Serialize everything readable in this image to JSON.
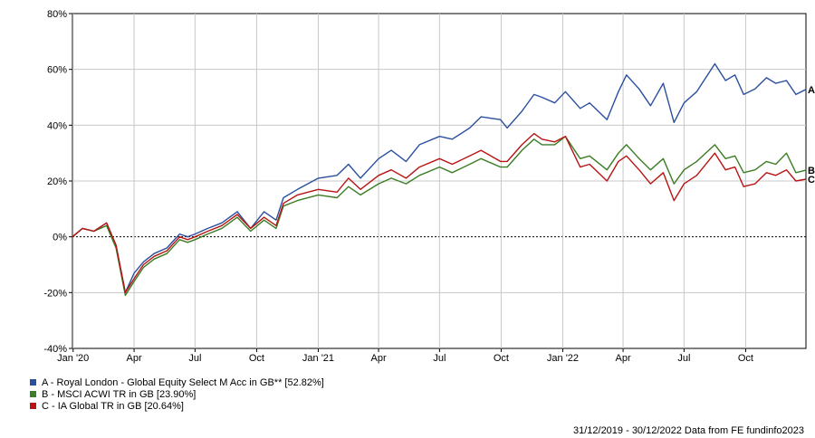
{
  "chart_data": {
    "type": "line",
    "ylim": [
      -40,
      80
    ],
    "y_tick_labels": [
      "80%",
      "60%",
      "40%",
      "20%",
      "0%",
      "-20%",
      "-40%"
    ],
    "y_tick_values": [
      80,
      60,
      40,
      20,
      0,
      -20,
      -40
    ],
    "x_tick_labels": [
      "Jan '20",
      "Apr",
      "Jul",
      "Oct",
      "Jan '21",
      "Apr",
      "Jul",
      "Oct",
      "Jan '22",
      "Apr",
      "Jul",
      "Oct"
    ],
    "x_tick_dates": [
      "2020-01-01",
      "2020-04-01",
      "2020-07-01",
      "2020-10-01",
      "2021-01-01",
      "2021-04-01",
      "2021-07-01",
      "2021-10-01",
      "2022-01-01",
      "2022-04-01",
      "2022-07-01",
      "2022-10-01"
    ],
    "x_range": [
      "2019-12-31",
      "2022-12-30"
    ],
    "grid": true,
    "zero_line": "dashed",
    "series": [
      {
        "name": "A - Royal London - Global Equity Select M Acc in GB** [52.82%]",
        "end_label": "A",
        "color": "#2a4f9f",
        "points": [
          [
            "2019-12-31",
            0
          ],
          [
            "2020-01-15",
            3
          ],
          [
            "2020-02-01",
            2
          ],
          [
            "2020-02-20",
            5
          ],
          [
            "2020-03-05",
            -3
          ],
          [
            "2020-03-19",
            -20
          ],
          [
            "2020-04-01",
            -13
          ],
          [
            "2020-04-15",
            -9
          ],
          [
            "2020-05-01",
            -6
          ],
          [
            "2020-05-20",
            -4
          ],
          [
            "2020-06-08",
            1
          ],
          [
            "2020-06-20",
            0
          ],
          [
            "2020-07-01",
            1
          ],
          [
            "2020-07-20",
            3
          ],
          [
            "2020-08-10",
            5
          ],
          [
            "2020-09-02",
            9
          ],
          [
            "2020-09-22",
            3
          ],
          [
            "2020-10-12",
            9
          ],
          [
            "2020-10-30",
            6
          ],
          [
            "2020-11-10",
            14
          ],
          [
            "2020-12-01",
            17
          ],
          [
            "2021-01-01",
            21
          ],
          [
            "2021-01-29",
            22
          ],
          [
            "2021-02-15",
            26
          ],
          [
            "2021-03-05",
            21
          ],
          [
            "2021-04-01",
            28
          ],
          [
            "2021-04-20",
            31
          ],
          [
            "2021-05-12",
            27
          ],
          [
            "2021-06-01",
            33
          ],
          [
            "2021-07-01",
            36
          ],
          [
            "2021-07-20",
            35
          ],
          [
            "2021-08-15",
            39
          ],
          [
            "2021-09-01",
            43
          ],
          [
            "2021-09-30",
            42
          ],
          [
            "2021-10-10",
            39
          ],
          [
            "2021-11-01",
            45
          ],
          [
            "2021-11-19",
            51
          ],
          [
            "2021-12-01",
            50
          ],
          [
            "2021-12-20",
            48
          ],
          [
            "2022-01-05",
            52
          ],
          [
            "2022-01-27",
            46
          ],
          [
            "2022-02-10",
            48
          ],
          [
            "2022-03-08",
            42
          ],
          [
            "2022-03-25",
            52
          ],
          [
            "2022-04-06",
            58
          ],
          [
            "2022-04-25",
            53
          ],
          [
            "2022-05-12",
            47
          ],
          [
            "2022-05-31",
            55
          ],
          [
            "2022-06-16",
            41
          ],
          [
            "2022-07-01",
            48
          ],
          [
            "2022-07-20",
            52
          ],
          [
            "2022-08-16",
            62
          ],
          [
            "2022-09-01",
            56
          ],
          [
            "2022-09-15",
            58
          ],
          [
            "2022-09-28",
            51
          ],
          [
            "2022-10-15",
            53
          ],
          [
            "2022-11-01",
            57
          ],
          [
            "2022-11-15",
            55
          ],
          [
            "2022-12-01",
            56
          ],
          [
            "2022-12-15",
            51
          ],
          [
            "2022-12-30",
            52.82
          ]
        ]
      },
      {
        "name": "B - MSCI ACWI TR in GB [23.90%]",
        "end_label": "B",
        "color": "#3b7d23",
        "points": [
          [
            "2019-12-31",
            0
          ],
          [
            "2020-01-15",
            3
          ],
          [
            "2020-02-01",
            2
          ],
          [
            "2020-02-20",
            4
          ],
          [
            "2020-03-05",
            -4
          ],
          [
            "2020-03-19",
            -21
          ],
          [
            "2020-04-01",
            -16
          ],
          [
            "2020-04-15",
            -11
          ],
          [
            "2020-05-01",
            -8
          ],
          [
            "2020-05-20",
            -6
          ],
          [
            "2020-06-08",
            -1
          ],
          [
            "2020-06-20",
            -2
          ],
          [
            "2020-07-01",
            -1
          ],
          [
            "2020-07-20",
            1
          ],
          [
            "2020-08-10",
            3
          ],
          [
            "2020-09-02",
            7
          ],
          [
            "2020-09-22",
            2
          ],
          [
            "2020-10-12",
            6
          ],
          [
            "2020-10-30",
            3
          ],
          [
            "2020-11-10",
            11
          ],
          [
            "2020-12-01",
            13
          ],
          [
            "2021-01-01",
            15
          ],
          [
            "2021-01-29",
            14
          ],
          [
            "2021-02-15",
            18
          ],
          [
            "2021-03-05",
            15
          ],
          [
            "2021-04-01",
            19
          ],
          [
            "2021-04-20",
            21
          ],
          [
            "2021-05-12",
            19
          ],
          [
            "2021-06-01",
            22
          ],
          [
            "2021-07-01",
            25
          ],
          [
            "2021-07-20",
            23
          ],
          [
            "2021-08-15",
            26
          ],
          [
            "2021-09-01",
            28
          ],
          [
            "2021-09-30",
            25
          ],
          [
            "2021-10-10",
            25
          ],
          [
            "2021-11-01",
            31
          ],
          [
            "2021-11-19",
            35
          ],
          [
            "2021-12-01",
            33
          ],
          [
            "2021-12-20",
            33
          ],
          [
            "2022-01-05",
            36
          ],
          [
            "2022-01-27",
            28
          ],
          [
            "2022-02-10",
            29
          ],
          [
            "2022-03-08",
            24
          ],
          [
            "2022-03-25",
            30
          ],
          [
            "2022-04-06",
            33
          ],
          [
            "2022-04-25",
            28
          ],
          [
            "2022-05-12",
            24
          ],
          [
            "2022-05-31",
            28
          ],
          [
            "2022-06-16",
            19
          ],
          [
            "2022-07-01",
            24
          ],
          [
            "2022-07-20",
            27
          ],
          [
            "2022-08-16",
            33
          ],
          [
            "2022-09-01",
            28
          ],
          [
            "2022-09-15",
            29
          ],
          [
            "2022-09-28",
            23
          ],
          [
            "2022-10-15",
            24
          ],
          [
            "2022-11-01",
            27
          ],
          [
            "2022-11-15",
            26
          ],
          [
            "2022-12-01",
            30
          ],
          [
            "2022-12-15",
            23
          ],
          [
            "2022-12-30",
            23.9
          ]
        ]
      },
      {
        "name": "C - IA Global TR in GB [20.64%]",
        "end_label": "C",
        "color": "#b81414",
        "points": [
          [
            "2019-12-31",
            0
          ],
          [
            "2020-01-15",
            3
          ],
          [
            "2020-02-01",
            2
          ],
          [
            "2020-02-20",
            5
          ],
          [
            "2020-03-05",
            -3
          ],
          [
            "2020-03-19",
            -20
          ],
          [
            "2020-04-01",
            -15
          ],
          [
            "2020-04-15",
            -10
          ],
          [
            "2020-05-01",
            -7
          ],
          [
            "2020-05-20",
            -5
          ],
          [
            "2020-06-08",
            0
          ],
          [
            "2020-06-20",
            -1
          ],
          [
            "2020-07-01",
            0
          ],
          [
            "2020-07-20",
            2
          ],
          [
            "2020-08-10",
            4
          ],
          [
            "2020-09-02",
            8
          ],
          [
            "2020-09-22",
            3
          ],
          [
            "2020-10-12",
            7
          ],
          [
            "2020-10-30",
            4
          ],
          [
            "2020-11-10",
            12
          ],
          [
            "2020-12-01",
            15
          ],
          [
            "2021-01-01",
            17
          ],
          [
            "2021-01-29",
            16
          ],
          [
            "2021-02-15",
            21
          ],
          [
            "2021-03-05",
            17
          ],
          [
            "2021-04-01",
            22
          ],
          [
            "2021-04-20",
            24
          ],
          [
            "2021-05-12",
            21
          ],
          [
            "2021-06-01",
            25
          ],
          [
            "2021-07-01",
            28
          ],
          [
            "2021-07-20",
            26
          ],
          [
            "2021-08-15",
            29
          ],
          [
            "2021-09-01",
            31
          ],
          [
            "2021-09-30",
            27
          ],
          [
            "2021-10-10",
            27
          ],
          [
            "2021-11-01",
            33
          ],
          [
            "2021-11-19",
            37
          ],
          [
            "2021-12-01",
            35
          ],
          [
            "2021-12-20",
            34
          ],
          [
            "2022-01-05",
            36
          ],
          [
            "2022-01-27",
            25
          ],
          [
            "2022-02-10",
            26
          ],
          [
            "2022-03-08",
            20
          ],
          [
            "2022-03-25",
            27
          ],
          [
            "2022-04-06",
            29
          ],
          [
            "2022-04-25",
            24
          ],
          [
            "2022-05-12",
            19
          ],
          [
            "2022-05-31",
            23
          ],
          [
            "2022-06-16",
            13
          ],
          [
            "2022-07-01",
            19
          ],
          [
            "2022-07-20",
            22
          ],
          [
            "2022-08-16",
            30
          ],
          [
            "2022-09-01",
            24
          ],
          [
            "2022-09-15",
            25
          ],
          [
            "2022-09-28",
            18
          ],
          [
            "2022-10-15",
            19
          ],
          [
            "2022-11-01",
            23
          ],
          [
            "2022-11-15",
            22
          ],
          [
            "2022-12-01",
            24
          ],
          [
            "2022-12-15",
            20
          ],
          [
            "2022-12-30",
            20.64
          ]
        ]
      }
    ]
  },
  "footer": {
    "text": "31/12/2019 - 30/12/2022 Data from FE fundinfo2023"
  }
}
